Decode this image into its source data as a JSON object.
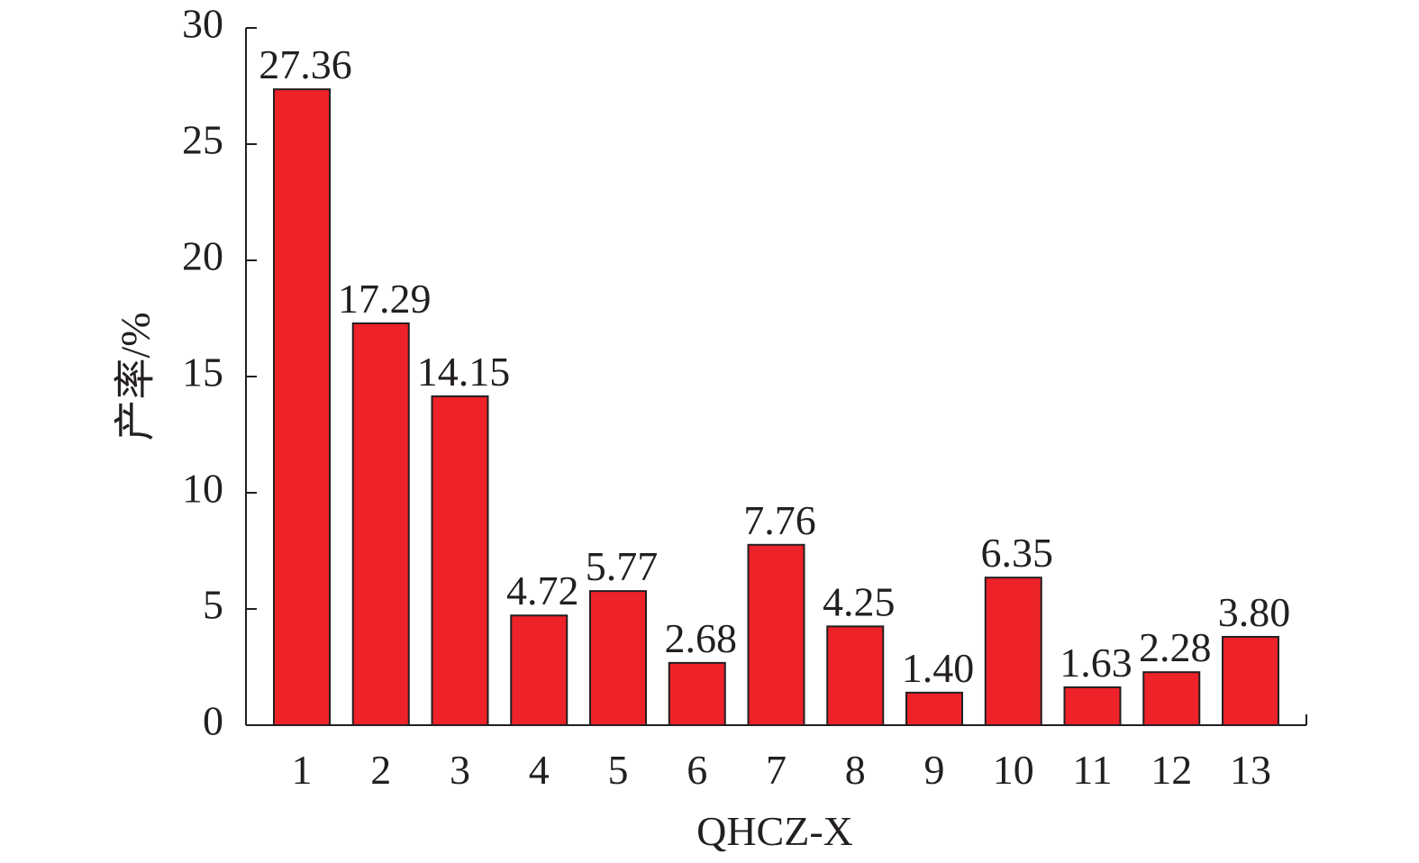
{
  "chart_data": {
    "type": "bar",
    "x_label": "QHCZ-X",
    "y_label": "产率/%",
    "categories": [
      "1",
      "2",
      "3",
      "4",
      "5",
      "6",
      "7",
      "8",
      "9",
      "10",
      "11",
      "12",
      "13"
    ],
    "values": [
      27.36,
      17.29,
      14.15,
      4.72,
      5.77,
      2.68,
      7.76,
      4.25,
      1.4,
      6.35,
      1.63,
      2.28,
      3.8
    ],
    "value_labels": [
      "27.36",
      "17.29",
      "14.15",
      "4.72",
      "5.77",
      "2.68",
      "7.76",
      "4.25",
      "1.40",
      "6.35",
      "1.63",
      "2.28",
      "3.80"
    ],
    "color": "#ee2229",
    "ylim": [
      0,
      30
    ],
    "yticks": [
      0,
      5,
      10,
      15,
      20,
      25,
      30
    ]
  }
}
